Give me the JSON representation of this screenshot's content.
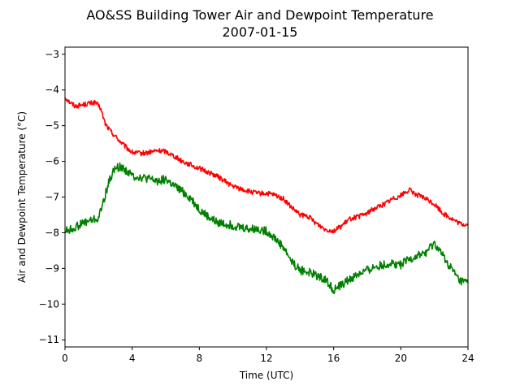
{
  "chart_data": {
    "type": "line",
    "title": "AO&SS Building Tower Air and Dewpoint Temperature",
    "subtitle": "2007-01-15",
    "xlabel": "Time (UTC)",
    "ylabel": "Air and Dewpoint Temperature (°C)",
    "xlim": [
      0,
      24
    ],
    "ylim": [
      -11.2,
      -2.8
    ],
    "xticks": [
      0,
      4,
      8,
      12,
      16,
      20,
      24
    ],
    "yticks": [
      -11,
      -10,
      -9,
      -8,
      -7,
      -6,
      -5,
      -4,
      -3
    ],
    "grid": false,
    "series": [
      {
        "color": "#ff0000",
        "x": [
          0,
          0.3,
          0.6,
          1.0,
          1.4,
          1.8,
          2.1,
          2.4,
          2.7,
          3.0,
          3.5,
          4.0,
          4.5,
          5.0,
          5.5,
          6.0,
          6.5,
          7.0,
          7.5,
          8.0,
          8.5,
          9.0,
          9.5,
          10.0,
          10.5,
          11.0,
          11.5,
          12.0,
          12.5,
          13.0,
          13.5,
          14.0,
          14.5,
          15.0,
          15.5,
          16.0,
          16.5,
          17.0,
          17.5,
          18.0,
          18.5,
          19.0,
          19.5,
          20.0,
          20.5,
          21.0,
          21.5,
          22.0,
          22.5,
          23.0,
          23.5,
          24.0
        ],
        "y": [
          -4.2,
          -4.35,
          -4.45,
          -4.42,
          -4.38,
          -4.35,
          -4.5,
          -4.95,
          -5.15,
          -5.3,
          -5.55,
          -5.75,
          -5.78,
          -5.75,
          -5.7,
          -5.72,
          -5.85,
          -6.0,
          -6.1,
          -6.2,
          -6.3,
          -6.4,
          -6.55,
          -6.7,
          -6.78,
          -6.85,
          -6.9,
          -6.9,
          -6.95,
          -7.05,
          -7.3,
          -7.5,
          -7.55,
          -7.75,
          -7.9,
          -7.95,
          -7.8,
          -7.6,
          -7.55,
          -7.45,
          -7.3,
          -7.2,
          -7.05,
          -6.95,
          -6.8,
          -6.95,
          -7.05,
          -7.2,
          -7.45,
          -7.6,
          -7.75,
          -7.78
        ]
      },
      {
        "color": "#008000",
        "x": [
          0,
          0.4,
          0.8,
          1.2,
          1.6,
          2.0,
          2.3,
          2.6,
          2.9,
          3.2,
          3.5,
          4.0,
          4.5,
          5.0,
          5.5,
          6.0,
          6.5,
          7.0,
          7.5,
          8.0,
          8.5,
          9.0,
          9.5,
          10.0,
          10.5,
          11.0,
          11.5,
          12.0,
          12.5,
          13.0,
          13.5,
          14.0,
          14.5,
          15.0,
          15.5,
          16.0,
          16.5,
          17.0,
          17.5,
          18.0,
          18.5,
          19.0,
          19.5,
          20.0,
          20.5,
          21.0,
          21.5,
          22.0,
          22.5,
          23.0,
          23.5,
          24.0
        ],
        "y": [
          -7.95,
          -7.9,
          -7.8,
          -7.7,
          -7.65,
          -7.6,
          -7.1,
          -6.6,
          -6.25,
          -6.15,
          -6.2,
          -6.4,
          -6.45,
          -6.5,
          -6.55,
          -6.5,
          -6.7,
          -6.85,
          -7.05,
          -7.35,
          -7.55,
          -7.7,
          -7.75,
          -7.8,
          -7.85,
          -7.9,
          -7.9,
          -7.95,
          -8.15,
          -8.4,
          -8.8,
          -9.05,
          -9.1,
          -9.2,
          -9.3,
          -9.6,
          -9.45,
          -9.3,
          -9.15,
          -9.05,
          -8.95,
          -8.9,
          -8.85,
          -8.9,
          -8.75,
          -8.65,
          -8.55,
          -8.3,
          -8.65,
          -9.0,
          -9.35,
          -9.4
        ]
      }
    ]
  }
}
